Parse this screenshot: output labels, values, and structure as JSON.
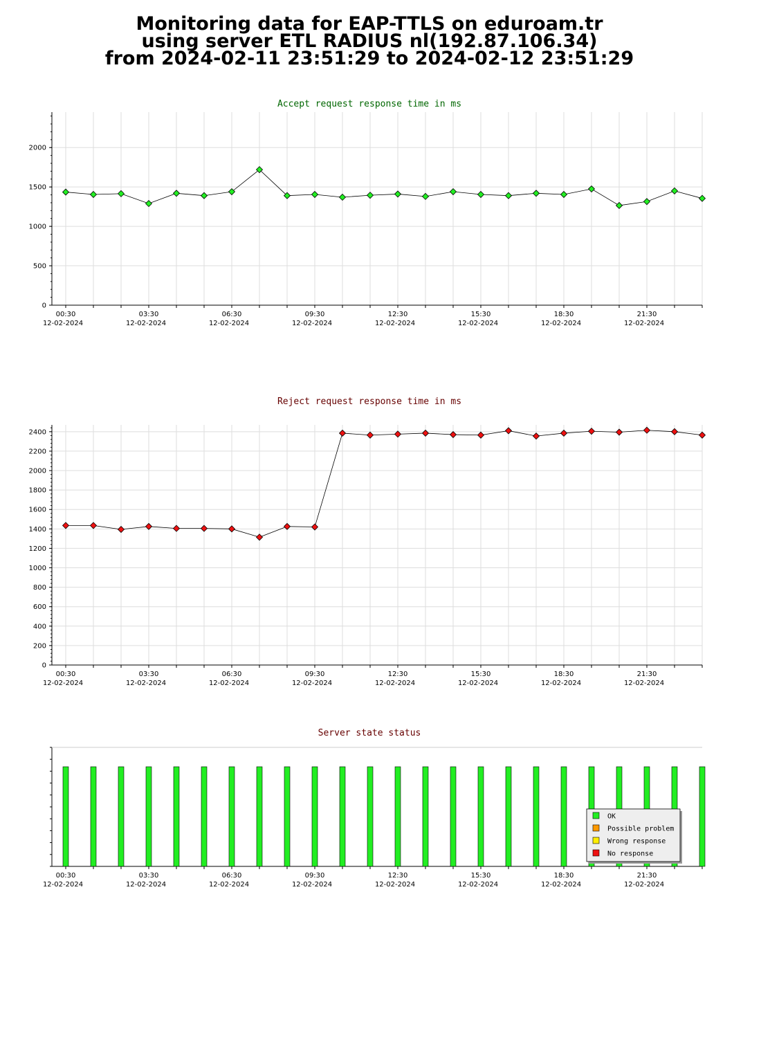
{
  "page": {
    "title_lines": [
      "Monitoring data for EAP-TTLS on eduroam.tr",
      "using server ETL RADIUS nl(192.87.106.34)",
      "from 2024-02-11 23:51:29 to 2024-02-12 23:51:29"
    ]
  },
  "chart_data": [
    {
      "type": "line",
      "title": "Accept request response time in ms",
      "title_color": "#006600",
      "marker_color": "#22ee22",
      "ylim": [
        0,
        2450
      ],
      "yticks": [
        0,
        500,
        1000,
        1500,
        2000
      ],
      "x_tick_labels": [
        [
          "00:30",
          "12-02-2024"
        ],
        [
          "03:30",
          "12-02-2024"
        ],
        [
          "06:30",
          "12-02-2024"
        ],
        [
          "09:30",
          "12-02-2024"
        ],
        [
          "12:30",
          "12-02-2024"
        ],
        [
          "15:30",
          "12-02-2024"
        ],
        [
          "18:30",
          "12-02-2024"
        ],
        [
          "21:30",
          "12-02-2024"
        ]
      ],
      "x_hours": [
        0.5,
        1.5,
        2.5,
        3.5,
        4.5,
        5.5,
        6.5,
        7.5,
        8.5,
        9.5,
        10.5,
        11.5,
        12.5,
        13.5,
        14.5,
        15.5,
        16.5,
        17.5,
        18.5,
        19.5,
        20.5,
        21.5,
        22.5,
        23.5
      ],
      "values": [
        1435,
        1405,
        1415,
        1290,
        1420,
        1390,
        1440,
        1720,
        1390,
        1405,
        1370,
        1395,
        1410,
        1380,
        1440,
        1405,
        1390,
        1420,
        1405,
        1475,
        1265,
        1315,
        1450,
        1355
      ],
      "grid": true
    },
    {
      "type": "line",
      "title": "Reject request response time in ms",
      "title_color": "#660000",
      "marker_color": "#ee1111",
      "ylim": [
        0,
        2470
      ],
      "yticks": [
        0,
        200,
        400,
        600,
        800,
        1000,
        1200,
        1400,
        1600,
        1800,
        2000,
        2200,
        2400
      ],
      "x_tick_labels": [
        [
          "00:30",
          "12-02-2024"
        ],
        [
          "03:30",
          "12-02-2024"
        ],
        [
          "06:30",
          "12-02-2024"
        ],
        [
          "09:30",
          "12-02-2024"
        ],
        [
          "12:30",
          "12-02-2024"
        ],
        [
          "15:30",
          "12-02-2024"
        ],
        [
          "18:30",
          "12-02-2024"
        ],
        [
          "21:30",
          "12-02-2024"
        ]
      ],
      "x_hours": [
        0.5,
        1.5,
        2.5,
        3.5,
        4.5,
        5.5,
        6.5,
        7.5,
        8.5,
        9.5,
        10.5,
        11.5,
        12.5,
        13.5,
        14.5,
        15.5,
        16.5,
        17.5,
        18.5,
        19.5,
        20.5,
        21.5,
        22.5,
        23.5
      ],
      "values": [
        1435,
        1435,
        1395,
        1425,
        1405,
        1405,
        1400,
        1315,
        1425,
        1420,
        2385,
        2365,
        2375,
        2385,
        2370,
        2365,
        2410,
        2355,
        2385,
        2405,
        2395,
        2415,
        2400,
        2365
      ],
      "grid": true
    },
    {
      "type": "bar",
      "title": "Server state status",
      "title_color": "#660000",
      "x_tick_labels": [
        [
          "00:30",
          "12-02-2024"
        ],
        [
          "03:30",
          "12-02-2024"
        ],
        [
          "06:30",
          "12-02-2024"
        ],
        [
          "09:30",
          "12-02-2024"
        ],
        [
          "12:30",
          "12-02-2024"
        ],
        [
          "15:30",
          "12-02-2024"
        ],
        [
          "18:30",
          "12-02-2024"
        ],
        [
          "21:30",
          "12-02-2024"
        ]
      ],
      "x_hours": [
        0.5,
        1.5,
        2.5,
        3.5,
        4.5,
        5.5,
        6.5,
        7.5,
        8.5,
        9.5,
        10.5,
        11.5,
        12.5,
        13.5,
        14.5,
        15.5,
        16.5,
        17.5,
        18.5,
        19.5,
        20.5,
        21.5,
        22.5,
        23.5
      ],
      "states": [
        "OK",
        "OK",
        "OK",
        "OK",
        "OK",
        "OK",
        "OK",
        "OK",
        "OK",
        "OK",
        "OK",
        "OK",
        "OK",
        "OK",
        "OK",
        "OK",
        "OK",
        "OK",
        "OK",
        "OK",
        "OK",
        "OK",
        "OK",
        "OK"
      ],
      "legend": [
        {
          "label": "OK",
          "color": "#22ee22"
        },
        {
          "label": "Possible problem",
          "color": "#ff9900"
        },
        {
          "label": "Wrong response",
          "color": "#ffee00"
        },
        {
          "label": "No response",
          "color": "#ee1111"
        }
      ],
      "legend_placement": "bottom-right"
    }
  ]
}
